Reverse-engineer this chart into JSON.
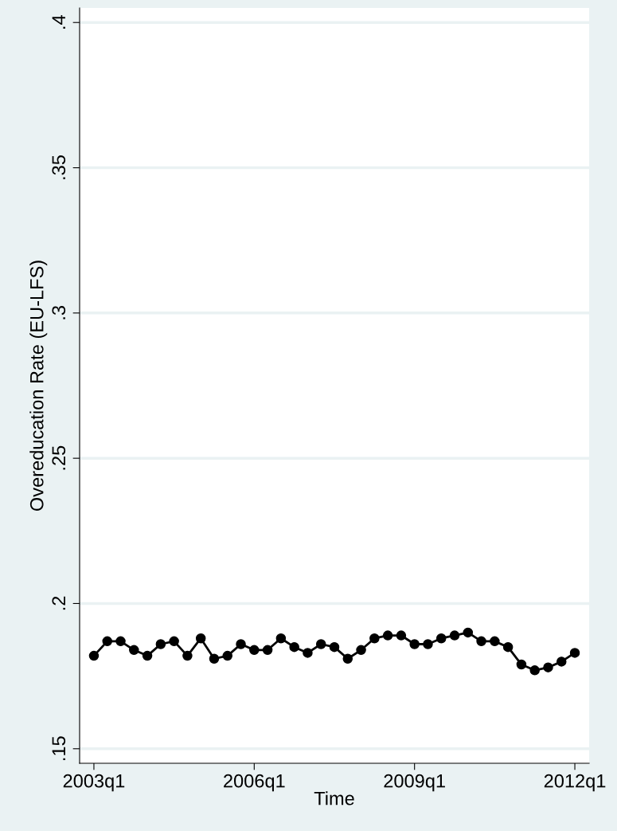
{
  "chart_data": {
    "type": "line",
    "xlabel": "Time",
    "ylabel": "Overeducation Rate (EU-LFS)",
    "categories": [
      "2003q1",
      null,
      null,
      null,
      null,
      null,
      null,
      null,
      null,
      null,
      null,
      null,
      "2006q1",
      null,
      null,
      null,
      null,
      null,
      null,
      null,
      null,
      null,
      null,
      null,
      "2009q1",
      null,
      null,
      null,
      null,
      null,
      null,
      null,
      null,
      null,
      null,
      null,
      "2012q1"
    ],
    "series": [
      {
        "color": "#000000",
        "values": [
          0.182,
          0.187,
          0.187,
          0.184,
          0.182,
          0.186,
          0.187,
          0.182,
          0.188,
          0.181,
          0.182,
          0.186,
          0.184,
          0.184,
          0.188,
          0.185,
          0.183,
          0.186,
          0.185,
          0.181,
          0.184,
          0.188,
          0.189,
          0.189,
          0.186,
          0.186,
          0.188,
          0.189,
          0.19,
          0.187,
          0.187,
          0.185,
          0.179,
          0.177,
          0.178,
          0.18,
          0.183
        ]
      }
    ],
    "ylim": [
      0.145,
      0.405
    ],
    "yticks": [
      {
        "value": 0.15,
        "label": ".15"
      },
      {
        "value": 0.2,
        "label": ".2"
      },
      {
        "value": 0.25,
        "label": ".25"
      },
      {
        "value": 0.3,
        "label": ".3"
      },
      {
        "value": 0.35,
        "label": ".35"
      },
      {
        "value": 0.4,
        "label": ".4"
      }
    ],
    "grid": "y",
    "marker": "circle",
    "line_style": "solid",
    "legend": false
  }
}
